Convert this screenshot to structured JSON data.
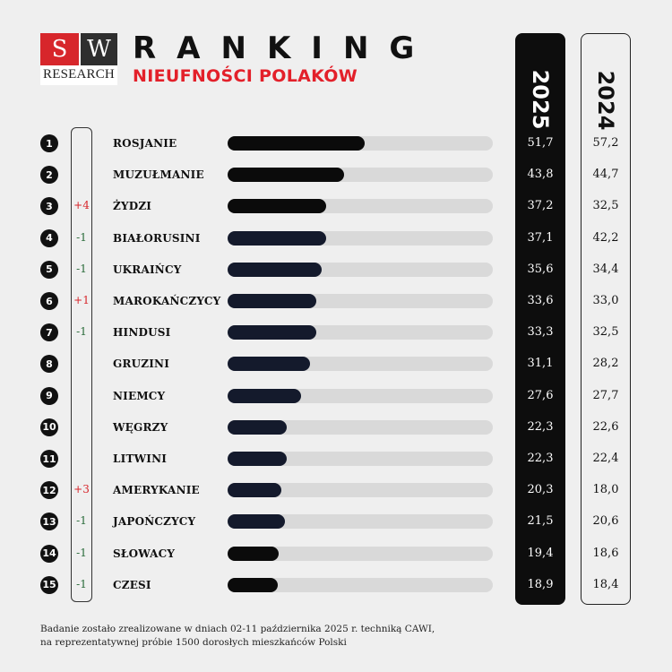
{
  "logo": {
    "s": "S",
    "w": "W",
    "sub": "RESEARCH"
  },
  "header": {
    "title": "RANKING",
    "subtitle": "NIEUFNOŚCI POLAKÓW"
  },
  "columns": {
    "year_a": "2025",
    "year_b": "2024"
  },
  "colors": {
    "accent": "#e3202a",
    "up": "#d7262b",
    "down": "#2a6b3a",
    "bar_dark": "#0b0b0b",
    "bar_navy": "#141a2c",
    "track": "#d9d9d9"
  },
  "chart_data": {
    "type": "bar",
    "title": "RANKING",
    "subtitle": "NIEUFNOŚCI POLAKÓW",
    "xlim": [
      0,
      100
    ],
    "series": [
      {
        "name": "2025",
        "values": [
          51.7,
          43.8,
          37.2,
          37.1,
          35.6,
          33.6,
          33.3,
          31.1,
          27.6,
          22.3,
          22.3,
          20.3,
          21.5,
          19.4,
          18.9
        ]
      },
      {
        "name": "2024",
        "values": [
          57.2,
          44.7,
          32.5,
          42.2,
          34.4,
          33.0,
          32.5,
          28.2,
          27.7,
          22.6,
          22.4,
          18.0,
          20.6,
          18.6,
          18.4
        ]
      }
    ],
    "rows": [
      {
        "rank": "1",
        "change": "",
        "name": "ROSJANIE",
        "v2025": "51,7",
        "v2024": "57,2",
        "val": 51.7,
        "shade": "dark"
      },
      {
        "rank": "2",
        "change": "",
        "name": "MUZUŁMANIE",
        "v2025": "43,8",
        "v2024": "44,7",
        "val": 43.8,
        "shade": "dark"
      },
      {
        "rank": "3",
        "change": "+4",
        "name": "ŻYDZI",
        "v2025": "37,2",
        "v2024": "32,5",
        "val": 37.2,
        "shade": "dark"
      },
      {
        "rank": "4",
        "change": "-1",
        "name": "BIAŁORUSINI",
        "v2025": "37,1",
        "v2024": "42,2",
        "val": 37.1,
        "shade": "navy"
      },
      {
        "rank": "5",
        "change": "-1",
        "name": "UKRAIŃCY",
        "v2025": "35,6",
        "v2024": "34,4",
        "val": 35.6,
        "shade": "navy"
      },
      {
        "rank": "6",
        "change": "+1",
        "name": "MAROKAŃCZYCY",
        "v2025": "33,6",
        "v2024": "33,0",
        "val": 33.6,
        "shade": "navy"
      },
      {
        "rank": "7",
        "change": "-1",
        "name": "HINDUSI",
        "v2025": "33,3",
        "v2024": "32,5",
        "val": 33.3,
        "shade": "navy"
      },
      {
        "rank": "8",
        "change": "",
        "name": "GRUZINI",
        "v2025": "31,1",
        "v2024": "28,2",
        "val": 31.1,
        "shade": "navy"
      },
      {
        "rank": "9",
        "change": "",
        "name": "NIEMCY",
        "v2025": "27,6",
        "v2024": "27,7",
        "val": 27.6,
        "shade": "navy"
      },
      {
        "rank": "10",
        "change": "",
        "name": "WĘGRZY",
        "v2025": "22,3",
        "v2024": "22,6",
        "val": 22.3,
        "shade": "navy"
      },
      {
        "rank": "11",
        "change": "",
        "name": "LITWINI",
        "v2025": "22,3",
        "v2024": "22,4",
        "val": 22.3,
        "shade": "navy"
      },
      {
        "rank": "12",
        "change": "+3",
        "name": "AMERYKANIE",
        "v2025": "20,3",
        "v2024": "18,0",
        "val": 20.3,
        "shade": "navy"
      },
      {
        "rank": "13",
        "change": "-1",
        "name": "JAPOŃCZYCY",
        "v2025": "21,5",
        "v2024": "20,6",
        "val": 21.5,
        "shade": "navy"
      },
      {
        "rank": "14",
        "change": "-1",
        "name": "SŁOWACY",
        "v2025": "19,4",
        "v2024": "18,6",
        "val": 19.4,
        "shade": "dark"
      },
      {
        "rank": "15",
        "change": "-1",
        "name": "CZESI",
        "v2025": "18,9",
        "v2024": "18,4",
        "val": 18.9,
        "shade": "dark"
      }
    ]
  },
  "footer": {
    "line1": "Badanie zostało zrealizowane w dniach 02-11 października 2025 r. techniką CAWI,",
    "line2": "na reprezentatywnej próbie 1500 dorosłych mieszkańców Polski"
  }
}
